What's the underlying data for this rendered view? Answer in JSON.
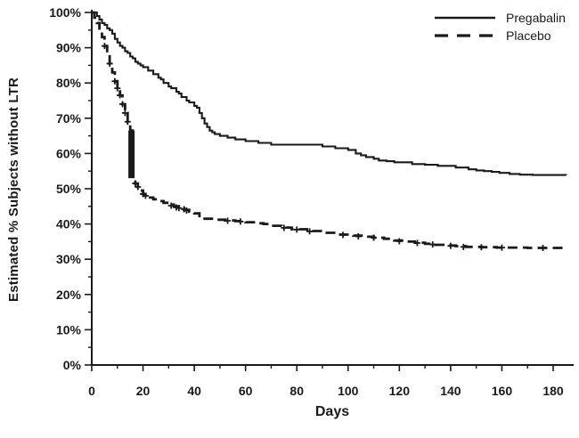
{
  "colors": {
    "line": "#1a1a1a",
    "background": "#ffffff"
  },
  "chart_data": {
    "type": "line",
    "subtype": "kaplan-meier-step",
    "title": "",
    "xlabel": "Days",
    "ylabel": "Estimated % Subjects without LTR",
    "xlim": [
      0,
      187
    ],
    "ylim": [
      0,
      100
    ],
    "grid": false,
    "legend_position": "top-right",
    "x_major_ticks": [
      0,
      20,
      40,
      60,
      80,
      100,
      120,
      140,
      160,
      180
    ],
    "x_tick_labels": [
      "0",
      "20",
      "40",
      "60",
      "80",
      "100",
      "120",
      "140",
      "160",
      "180"
    ],
    "x_minor_ticks": [
      10,
      30,
      50,
      70,
      90,
      110,
      130,
      150,
      170
    ],
    "y_major_ticks": [
      0,
      10,
      20,
      30,
      40,
      50,
      60,
      70,
      80,
      90,
      100
    ],
    "y_tick_labels": [
      "0%",
      "10%",
      "20%",
      "30%",
      "40%",
      "50%",
      "60%",
      "70%",
      "80%",
      "90%",
      "100%"
    ],
    "y_minor_ticks": [
      5,
      15,
      25,
      35,
      45,
      55,
      65,
      75,
      85,
      95
    ],
    "legend": [
      {
        "label": "Pregabalin",
        "line_style": "solid"
      },
      {
        "label": "Placebo",
        "line_style": "dashed"
      }
    ],
    "series": [
      {
        "name": "Pregabalin",
        "line_style": "solid",
        "points": [
          [
            0,
            100
          ],
          [
            2,
            99
          ],
          [
            3,
            98
          ],
          [
            4,
            97
          ],
          [
            5,
            96.5
          ],
          [
            6,
            95.5
          ],
          [
            7,
            95
          ],
          [
            8,
            94
          ],
          [
            9,
            92.5
          ],
          [
            10,
            91.5
          ],
          [
            11,
            90.5
          ],
          [
            12,
            90
          ],
          [
            13,
            89
          ],
          [
            14,
            88.5
          ],
          [
            15,
            87.5
          ],
          [
            16,
            87
          ],
          [
            17,
            86
          ],
          [
            18,
            85.5
          ],
          [
            19,
            85
          ],
          [
            20,
            84.5
          ],
          [
            22,
            83.5
          ],
          [
            24,
            82.5
          ],
          [
            26,
            81.5
          ],
          [
            27,
            81
          ],
          [
            28,
            80
          ],
          [
            30,
            79
          ],
          [
            31,
            78.5
          ],
          [
            33,
            77.5
          ],
          [
            34,
            77
          ],
          [
            35,
            76
          ],
          [
            37,
            75
          ],
          [
            38,
            74.5
          ],
          [
            40,
            73.5
          ],
          [
            41,
            73
          ],
          [
            42,
            71.5
          ],
          [
            43,
            70
          ],
          [
            44,
            68.5
          ],
          [
            45,
            67.5
          ],
          [
            46,
            66.5
          ],
          [
            47,
            66
          ],
          [
            48,
            65.5
          ],
          [
            50,
            65
          ],
          [
            53,
            64.5
          ],
          [
            56,
            64
          ],
          [
            60,
            63.5
          ],
          [
            65,
            63
          ],
          [
            70,
            62.5
          ],
          [
            90,
            62
          ],
          [
            95,
            61.5
          ],
          [
            100,
            61
          ],
          [
            103,
            60
          ],
          [
            105,
            59.5
          ],
          [
            107,
            59
          ],
          [
            110,
            58.5
          ],
          [
            112,
            58
          ],
          [
            115,
            57.8
          ],
          [
            118,
            57.5
          ],
          [
            125,
            57
          ],
          [
            130,
            56.8
          ],
          [
            135,
            56.5
          ],
          [
            142,
            56
          ],
          [
            147,
            55.5
          ],
          [
            150,
            55.2
          ],
          [
            153,
            55
          ],
          [
            156,
            54.8
          ],
          [
            159,
            54.5
          ],
          [
            163,
            54.2
          ],
          [
            167,
            54
          ],
          [
            172,
            53.9
          ],
          [
            185,
            53.8
          ]
        ],
        "censor_marks": []
      },
      {
        "name": "Placebo",
        "line_style": "dashed",
        "points": [
          [
            0,
            100
          ],
          [
            1,
            98.5
          ],
          [
            2,
            97
          ],
          [
            3,
            95
          ],
          [
            4,
            93
          ],
          [
            5,
            90.5
          ],
          [
            6,
            88
          ],
          [
            7,
            85.5
          ],
          [
            8,
            83
          ],
          [
            9,
            80.5
          ],
          [
            10,
            78.5
          ],
          [
            11,
            76.5
          ],
          [
            12,
            74
          ],
          [
            13,
            71.5
          ],
          [
            14,
            69
          ],
          [
            15,
            66.5
          ],
          [
            16,
            53.5
          ],
          [
            17,
            51.5
          ],
          [
            18,
            50.5
          ],
          [
            19,
            49.5
          ],
          [
            20,
            48.5
          ],
          [
            21,
            48
          ],
          [
            22,
            47.5
          ],
          [
            24,
            47
          ],
          [
            26,
            46.5
          ],
          [
            28,
            46
          ],
          [
            30,
            45.5
          ],
          [
            32,
            45
          ],
          [
            34,
            44.5
          ],
          [
            36,
            44
          ],
          [
            38,
            43.5
          ],
          [
            40,
            43
          ],
          [
            42,
            41.5
          ],
          [
            48,
            41.2
          ],
          [
            52,
            41
          ],
          [
            56,
            40.8
          ],
          [
            60,
            40.5
          ],
          [
            64,
            40.2
          ],
          [
            67,
            40
          ],
          [
            70,
            39.5
          ],
          [
            74,
            39
          ],
          [
            78,
            38.5
          ],
          [
            84,
            38
          ],
          [
            90,
            37.5
          ],
          [
            96,
            37
          ],
          [
            102,
            36.7
          ],
          [
            106,
            36.4
          ],
          [
            110,
            36.1
          ],
          [
            114,
            35.8
          ],
          [
            118,
            35.3
          ],
          [
            122,
            35
          ],
          [
            126,
            34.7
          ],
          [
            130,
            34.4
          ],
          [
            134,
            34.1
          ],
          [
            138,
            33.9
          ],
          [
            142,
            33.7
          ],
          [
            146,
            33.5
          ],
          [
            152,
            33.4
          ],
          [
            158,
            33.3
          ],
          [
            170,
            33.2
          ],
          [
            185,
            33.1
          ]
        ],
        "censor_marks": [
          [
            5,
            90.5
          ],
          [
            7,
            85.5
          ],
          [
            9,
            80.5
          ],
          [
            10,
            78.5
          ],
          [
            11,
            76.5
          ],
          [
            12,
            74
          ],
          [
            13,
            71.5
          ],
          [
            14,
            69
          ],
          [
            17,
            51.5
          ],
          [
            18,
            50.5
          ],
          [
            20,
            48.5
          ],
          [
            21,
            48
          ],
          [
            31,
            45.2
          ],
          [
            33,
            44.7
          ],
          [
            34,
            44.5
          ],
          [
            36,
            44.2
          ],
          [
            37,
            43.8
          ],
          [
            53,
            40.9
          ],
          [
            58,
            40.7
          ],
          [
            75,
            38.9
          ],
          [
            80,
            38.4
          ],
          [
            85,
            37.9
          ],
          [
            98,
            36.9
          ],
          [
            104,
            36.5
          ],
          [
            110,
            36.1
          ],
          [
            120,
            35.1
          ],
          [
            127,
            34.6
          ],
          [
            133,
            34.2
          ],
          [
            140,
            33.8
          ],
          [
            145,
            33.5
          ],
          [
            152,
            33.4
          ],
          [
            160,
            33.3
          ],
          [
            176,
            33.2
          ]
        ],
        "censor_cluster_bar": {
          "day": 15.5,
          "from_pct": 66.5,
          "to_pct": 53
        }
      }
    ]
  }
}
